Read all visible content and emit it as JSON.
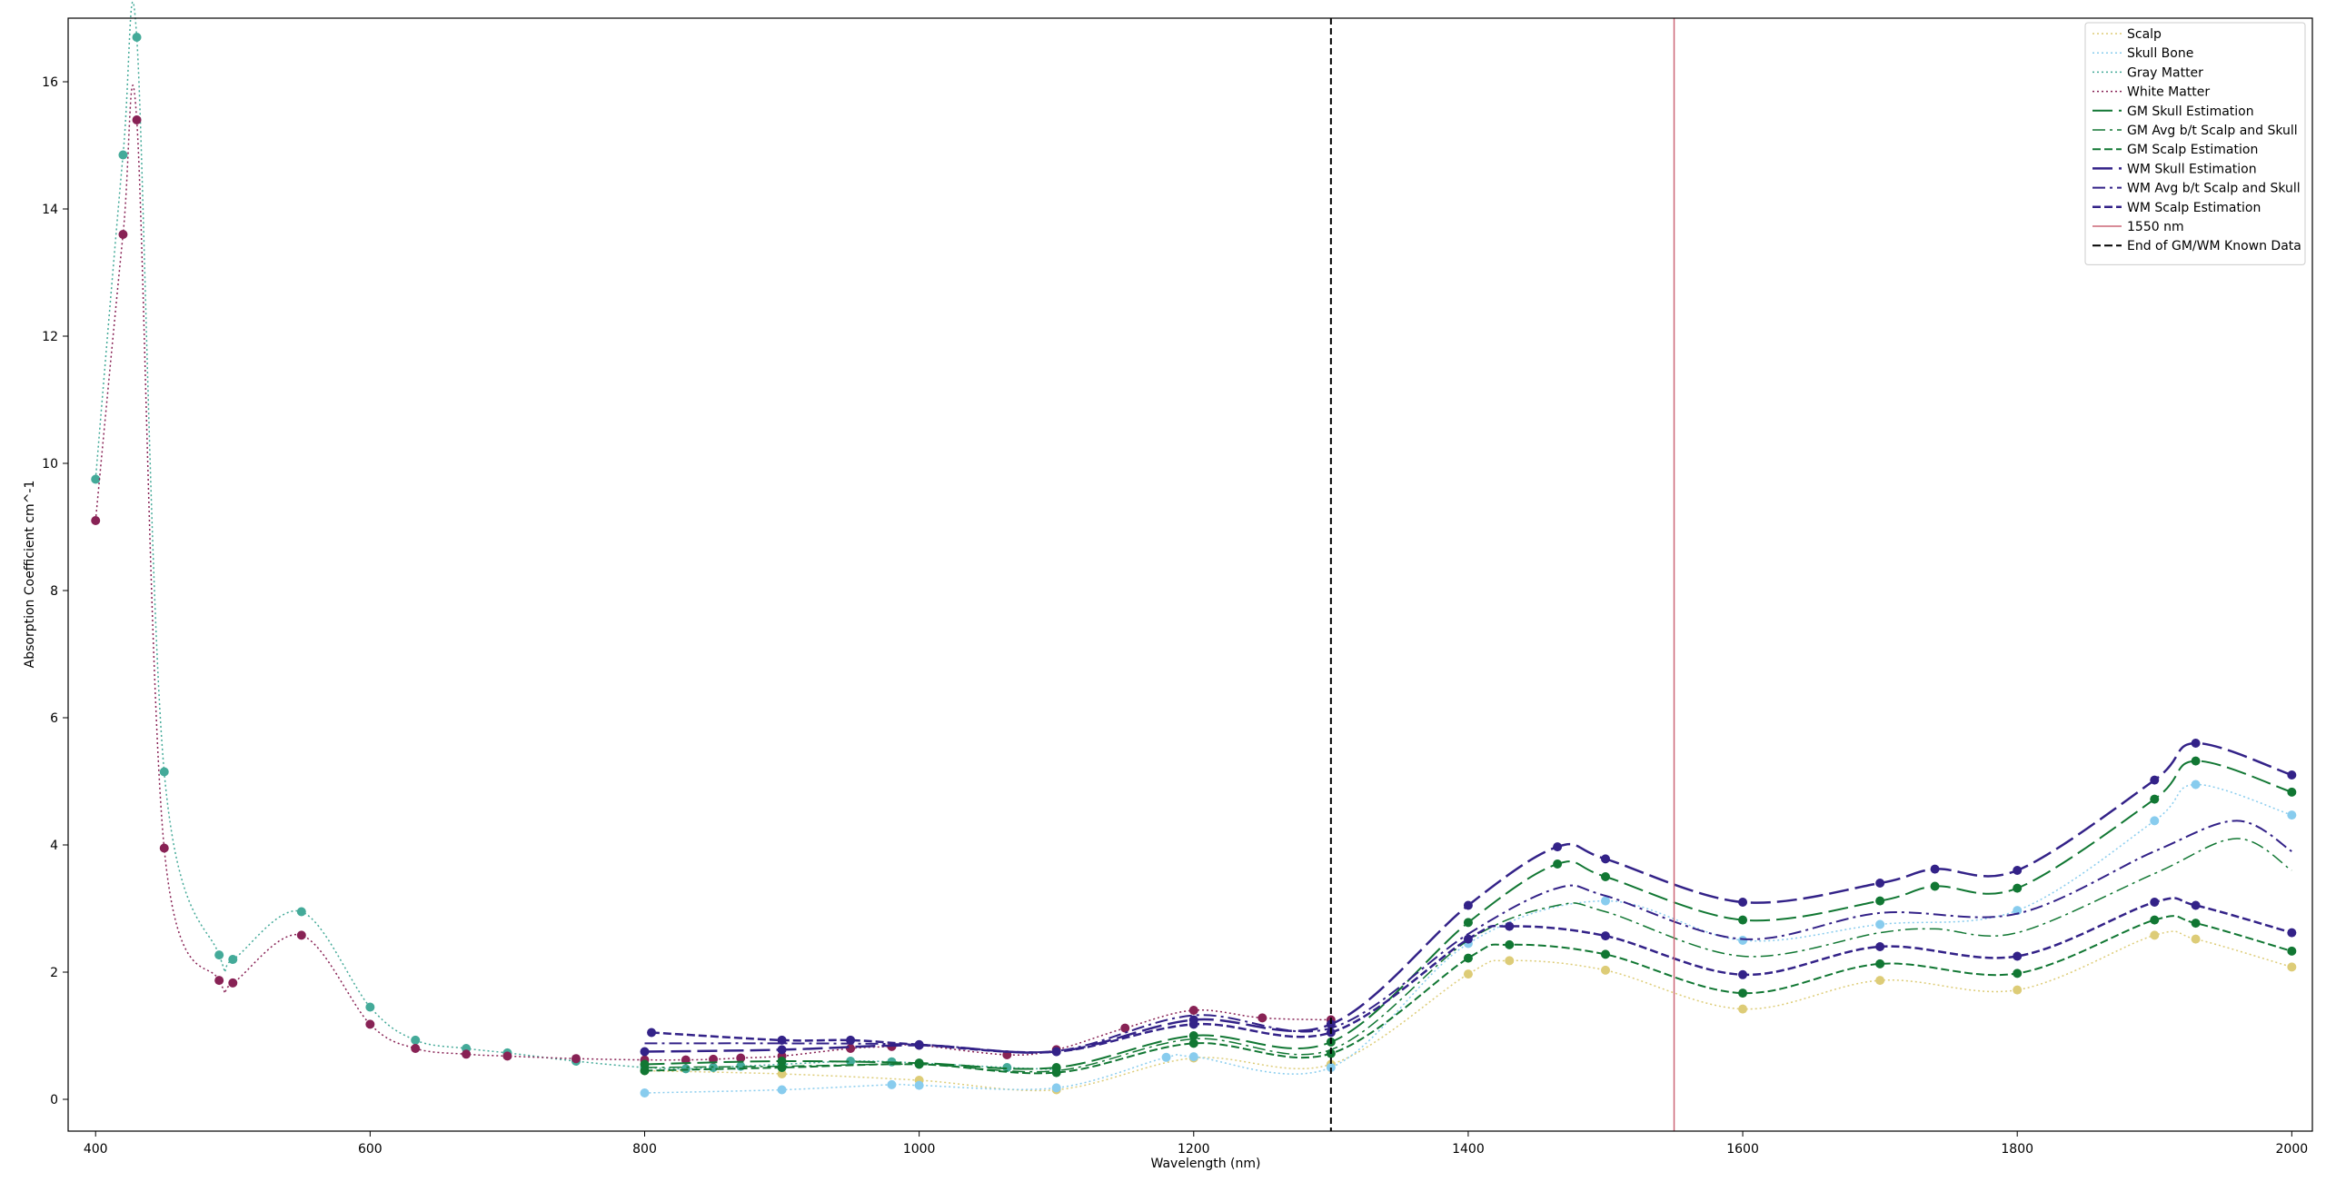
{
  "chart_data": {
    "type": "line",
    "title": "",
    "xlabel": "Wavelength (nm)",
    "ylabel": "Absorption Coefficient cm^-1",
    "xlim": [
      380,
      2015
    ],
    "ylim": [
      -0.5,
      17.0
    ],
    "xticks": [
      400,
      600,
      800,
      1000,
      1200,
      1400,
      1600,
      1800,
      2000
    ],
    "yticks": [
      0,
      2,
      4,
      6,
      8,
      10,
      12,
      14,
      16
    ],
    "grid": false,
    "legend_position": "top-right",
    "series": [
      {
        "name": "Scalp",
        "color": "#DDCC77",
        "style": "dotted",
        "width": 1.5,
        "x": [
          800,
          900,
          1000,
          1100,
          1200,
          1300,
          1400,
          1430,
          1500,
          1600,
          1700,
          1800,
          1900,
          1930,
          2000
        ],
        "y": [
          0.45,
          0.4,
          0.3,
          0.15,
          0.65,
          0.55,
          1.97,
          2.18,
          2.03,
          1.42,
          1.87,
          1.72,
          2.58,
          2.52,
          2.08
        ],
        "markers": true
      },
      {
        "name": "Skull Bone",
        "color": "#88CCEE",
        "style": "dotted",
        "width": 1.5,
        "x": [
          800,
          900,
          980,
          1000,
          1100,
          1180,
          1200,
          1300,
          1400,
          1500,
          1600,
          1700,
          1800,
          1900,
          1930,
          2000
        ],
        "y": [
          0.1,
          0.15,
          0.23,
          0.22,
          0.18,
          0.66,
          0.67,
          0.5,
          2.45,
          3.12,
          2.5,
          2.75,
          2.97,
          4.38,
          4.95,
          4.47
        ],
        "markers": true
      },
      {
        "name": "Gray Matter",
        "color": "#44AA99",
        "style": "dotted",
        "width": 1.5,
        "x": [
          400,
          420,
          430,
          450,
          490,
          500,
          550,
          600,
          633,
          670,
          700,
          750,
          800,
          830,
          850,
          870,
          900,
          950,
          980,
          1000,
          1064,
          1100
        ],
        "y": [
          9.75,
          14.85,
          16.7,
          5.15,
          2.27,
          2.2,
          2.95,
          1.45,
          0.93,
          0.8,
          0.73,
          0.6,
          0.5,
          0.48,
          0.5,
          0.52,
          0.55,
          0.6,
          0.59,
          0.57,
          0.5,
          0.47
        ],
        "markers": true
      },
      {
        "name": "White Matter",
        "color": "#882255",
        "style": "dotted",
        "width": 1.5,
        "x": [
          400,
          420,
          430,
          450,
          490,
          500,
          550,
          600,
          633,
          670,
          700,
          750,
          800,
          830,
          850,
          870,
          900,
          950,
          980,
          1000,
          1064,
          1100,
          1150,
          1200,
          1250,
          1300
        ],
        "y": [
          9.1,
          13.6,
          15.4,
          3.95,
          1.87,
          1.83,
          2.58,
          1.18,
          0.8,
          0.71,
          0.68,
          0.64,
          0.62,
          0.62,
          0.63,
          0.65,
          0.68,
          0.8,
          0.83,
          0.85,
          0.7,
          0.78,
          1.12,
          1.4,
          1.28,
          1.25
        ],
        "markers": true
      },
      {
        "name": "GM Skull Estimation",
        "color": "#117733",
        "style": "longdash",
        "width": 2,
        "x": [
          800,
          900,
          1000,
          1100,
          1200,
          1300,
          1400,
          1465,
          1500,
          1600,
          1700,
          1740,
          1800,
          1900,
          1930,
          2000
        ],
        "y": [
          0.55,
          0.6,
          0.57,
          0.5,
          1.0,
          0.9,
          2.78,
          3.7,
          3.5,
          2.82,
          3.12,
          3.35,
          3.32,
          4.72,
          5.32,
          4.83
        ],
        "markers": true
      },
      {
        "name": "GM Avg b/t Scalp and Skull",
        "color": "#117733",
        "style": "dashdot",
        "width": 1.5,
        "x": [
          800,
          900,
          1000,
          1100,
          1200,
          1300,
          1400,
          1465,
          1500,
          1600,
          1700,
          1740,
          1800,
          1900,
          1960,
          2000
        ],
        "y": [
          0.5,
          0.52,
          0.55,
          0.45,
          0.95,
          0.78,
          2.5,
          3.05,
          2.95,
          2.25,
          2.62,
          2.68,
          2.62,
          3.55,
          4.1,
          3.6
        ],
        "markers": false
      },
      {
        "name": "GM Scalp Estimation",
        "color": "#117733",
        "style": "dashed",
        "width": 2,
        "x": [
          800,
          900,
          1000,
          1100,
          1200,
          1300,
          1400,
          1430,
          1500,
          1600,
          1700,
          1800,
          1900,
          1930,
          2000
        ],
        "y": [
          0.45,
          0.5,
          0.55,
          0.42,
          0.88,
          0.72,
          2.22,
          2.43,
          2.28,
          1.67,
          2.13,
          1.98,
          2.82,
          2.77,
          2.33
        ],
        "markers": true
      },
      {
        "name": "WM Skull Estimation",
        "color": "#332288",
        "style": "longdash",
        "width": 2.5,
        "x": [
          800,
          900,
          1000,
          1100,
          1200,
          1300,
          1400,
          1465,
          1500,
          1600,
          1700,
          1740,
          1800,
          1900,
          1930,
          2000
        ],
        "y": [
          0.75,
          0.78,
          0.85,
          0.75,
          1.25,
          1.18,
          3.05,
          3.97,
          3.78,
          3.1,
          3.4,
          3.62,
          3.6,
          5.02,
          5.6,
          5.1
        ],
        "markers": true
      },
      {
        "name": "WM Avg b/t Scalp and Skull",
        "color": "#332288",
        "style": "dashdot",
        "width": 2,
        "x": [
          800,
          900,
          1000,
          1100,
          1200,
          1300,
          1400,
          1465,
          1500,
          1600,
          1700,
          1800,
          1900,
          1960,
          2000
        ],
        "y": [
          0.88,
          0.88,
          0.86,
          0.76,
          1.32,
          1.12,
          2.6,
          3.32,
          3.2,
          2.52,
          2.93,
          2.92,
          3.9,
          4.38,
          3.9
        ],
        "markers": false
      },
      {
        "name": "WM Scalp Estimation",
        "color": "#332288",
        "style": "dashed",
        "width": 2.5,
        "x": [
          805,
          900,
          950,
          1000,
          1100,
          1200,
          1300,
          1400,
          1430,
          1500,
          1600,
          1700,
          1800,
          1900,
          1930,
          2000
        ],
        "y": [
          1.05,
          0.93,
          0.93,
          0.86,
          0.75,
          1.18,
          1.05,
          2.52,
          2.72,
          2.57,
          1.96,
          2.4,
          2.25,
          3.1,
          3.05,
          2.62
        ],
        "markers": true
      }
    ],
    "vlines": [
      {
        "name": "1550 nm",
        "x": 1550,
        "color": "#CC6677",
        "style": "solid"
      },
      {
        "name": "End of GM/WM Known Data",
        "x": 1300,
        "color": "#000000",
        "style": "dashed"
      }
    ]
  }
}
